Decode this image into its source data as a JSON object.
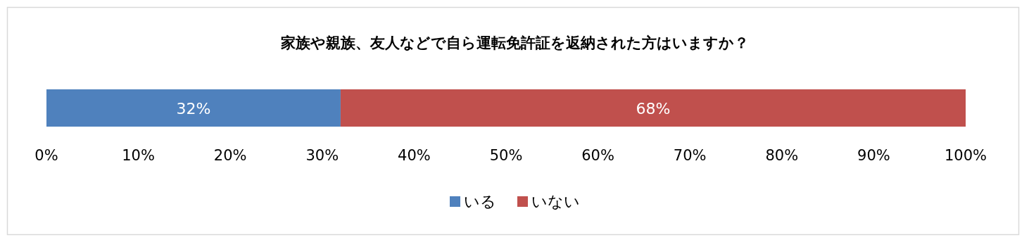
{
  "chart_data": {
    "type": "bar",
    "orientation": "horizontal",
    "stacked": true,
    "title": "家族や親族、友人などで自ら運転免許証を返納された方はいますか？",
    "categories": [
      null
    ],
    "series": [
      {
        "name": "いる",
        "color": "#4f81bd",
        "values": [
          32
        ],
        "value_labels": [
          "32%"
        ]
      },
      {
        "name": "いない",
        "color": "#c0504d",
        "values": [
          68
        ],
        "value_labels": [
          "68%"
        ]
      }
    ],
    "xlim": [
      0,
      100
    ],
    "xticks": [
      {
        "value": 0,
        "label": "0%"
      },
      {
        "value": 10,
        "label": "10%"
      },
      {
        "value": 20,
        "label": "20%"
      },
      {
        "value": 30,
        "label": "30%"
      },
      {
        "value": 40,
        "label": "40%"
      },
      {
        "value": 50,
        "label": "50%"
      },
      {
        "value": 60,
        "label": "60%"
      },
      {
        "value": 70,
        "label": "70%"
      },
      {
        "value": 80,
        "label": "80%"
      },
      {
        "value": 90,
        "label": "90%"
      },
      {
        "value": 100,
        "label": "100%"
      }
    ],
    "legend": "bottom"
  }
}
